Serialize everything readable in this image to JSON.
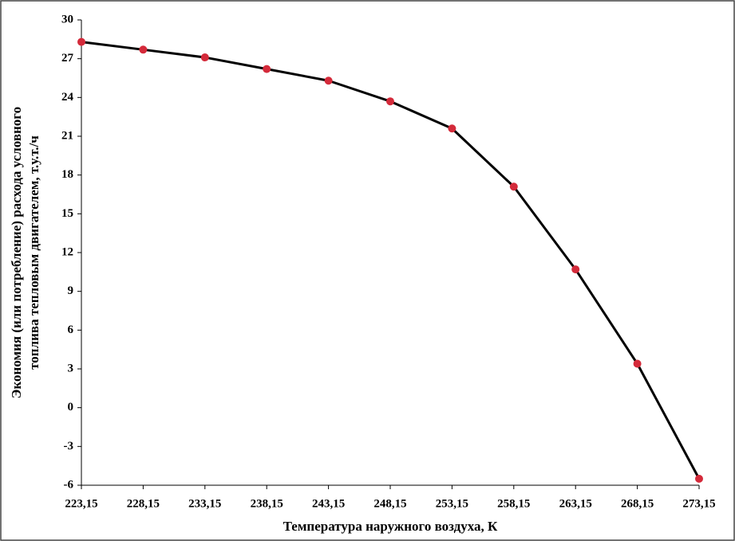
{
  "chart_data": {
    "type": "line",
    "xlabel": "Температура наружного воздуха, К",
    "ylabel": [
      "Экономия (или потребление) расхода условного",
      "топлива тепловым двигателем, т.у.т./ч"
    ],
    "x": [
      223.15,
      228.15,
      233.15,
      238.15,
      243.15,
      248.15,
      253.15,
      258.15,
      263.15,
      268.15,
      273.15
    ],
    "values": [
      28.3,
      27.7,
      27.1,
      26.2,
      25.3,
      23.7,
      21.6,
      17.1,
      10.7,
      3.4,
      -5.5
    ],
    "color": "#000000",
    "marker_color": "#d42a3a",
    "xlim": [
      223.15,
      273.15
    ],
    "xticks": [
      {
        "value": 223.15,
        "label": "223,15"
      },
      {
        "value": 228.15,
        "label": "228,15"
      },
      {
        "value": 233.15,
        "label": "233,15"
      },
      {
        "value": 238.15,
        "label": "238,15"
      },
      {
        "value": 243.15,
        "label": "243,15"
      },
      {
        "value": 248.15,
        "label": "248,15"
      },
      {
        "value": 253.15,
        "label": "253,15"
      },
      {
        "value": 258.15,
        "label": "258,15"
      },
      {
        "value": 263.15,
        "label": "263,15"
      },
      {
        "value": 268.15,
        "label": "268,15"
      },
      {
        "value": 273.15,
        "label": "273,15"
      }
    ],
    "ylim": [
      -6,
      30
    ],
    "yticks": [
      -6,
      -3,
      0,
      3,
      6,
      9,
      12,
      15,
      18,
      21,
      24,
      27,
      30
    ]
  }
}
